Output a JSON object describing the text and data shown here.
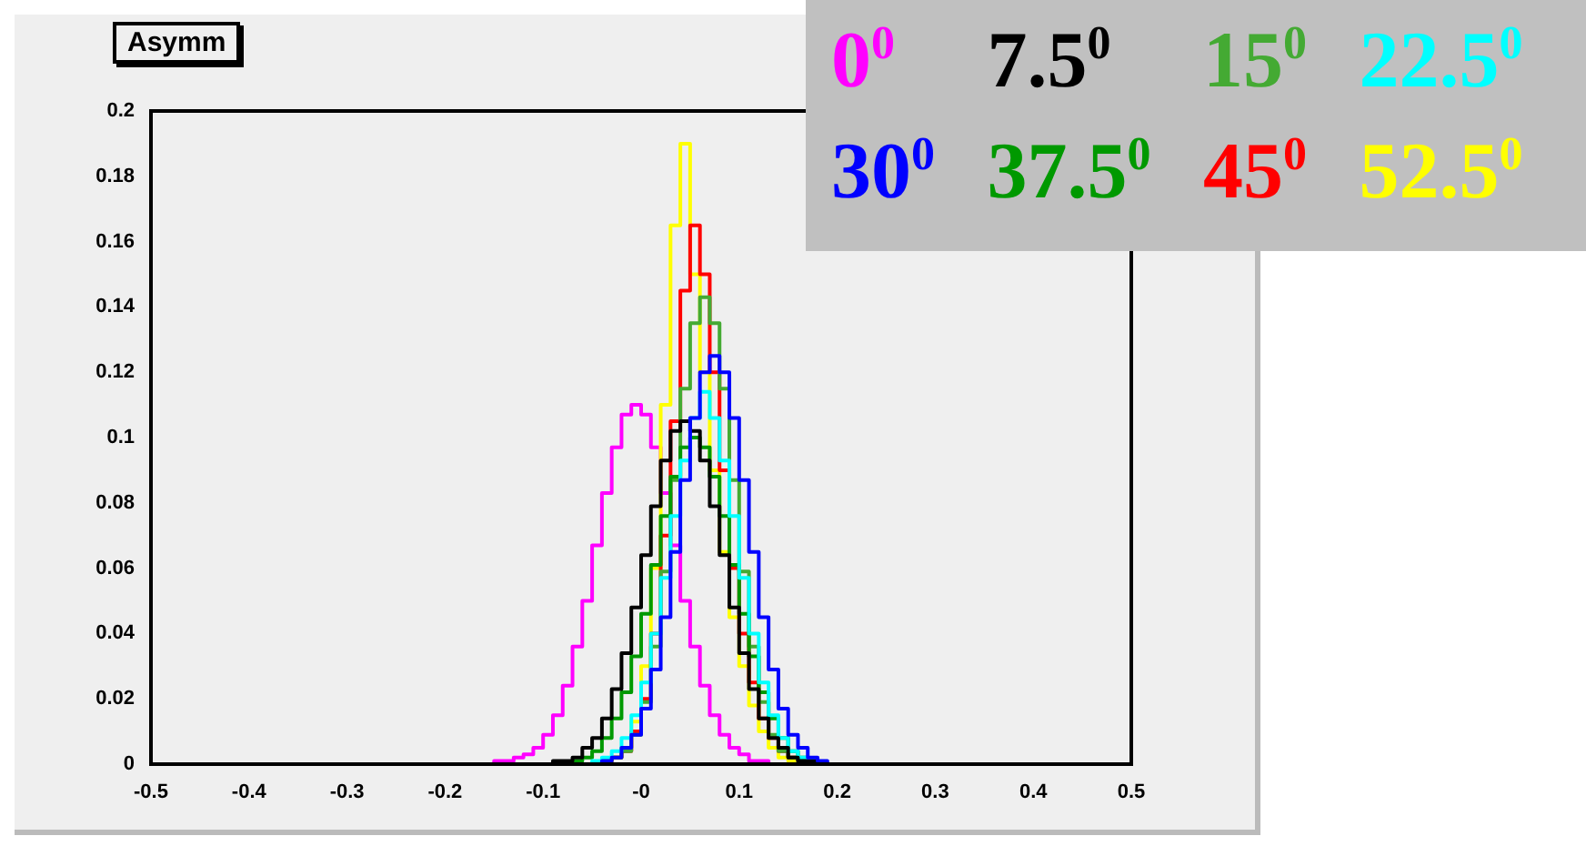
{
  "chart_data": {
    "type": "histogram",
    "title": "Asymm",
    "legend": "top right",
    "xlim": [
      -0.5,
      0.5
    ],
    "ylim": [
      0,
      0.2
    ],
    "xticks": [
      -0.5,
      -0.4,
      -0.3,
      -0.2,
      -0.1,
      {
        "value": 0,
        "label": "-0"
      },
      0.1,
      0.2,
      0.3,
      0.4,
      0.5
    ],
    "yticks": [
      0,
      0.02,
      0.04,
      0.06,
      0.08,
      0.1,
      0.12,
      0.14,
      0.16,
      0.18,
      0.2
    ],
    "bins": [
      -0.5,
      -0.16,
      -0.15,
      -0.14,
      -0.13,
      -0.12,
      -0.11,
      -0.1,
      -0.09,
      -0.08,
      -0.07,
      -0.06,
      -0.05,
      -0.04,
      -0.03,
      -0.02,
      -0.01,
      0,
      0.01,
      0.02,
      0.03,
      0.04,
      0.05,
      0.06,
      0.07,
      0.08,
      0.09,
      0.1,
      0.11,
      0.12,
      0.13,
      0.14,
      0.15,
      0.16,
      0.17,
      0.18,
      0.19,
      0.2,
      0.21,
      0.22,
      0.23,
      0.24,
      0.25,
      0.26,
      0.5
    ],
    "series": [
      {
        "name": "0$^{0}$",
        "color": "#ff00ff",
        "values": [
          0,
          0,
          0.001,
          0.001,
          0.002,
          0.003,
          0.005,
          0.009,
          0.015,
          0.024,
          0.036,
          0.05,
          0.067,
          0.083,
          0.097,
          0.107,
          0.11,
          0.107,
          0.097,
          0.083,
          0.067,
          0.05,
          0.036,
          0.024,
          0.015,
          0.009,
          0.005,
          0.003,
          0.001,
          0.001,
          0,
          0,
          0,
          0,
          0,
          0,
          0,
          0,
          0,
          0,
          0,
          0,
          0,
          0
        ]
      },
      {
        "name": "7.5$^{0}$",
        "color": "#000000",
        "values": [
          0,
          0,
          0,
          0,
          0,
          0,
          0,
          0,
          0.001,
          0.001,
          0.002,
          0.005,
          0.008,
          0.014,
          0.023,
          0.034,
          0.048,
          0.064,
          0.079,
          0.093,
          0.102,
          0.105,
          0.102,
          0.093,
          0.079,
          0.064,
          0.048,
          0.034,
          0.023,
          0.014,
          0.008,
          0.005,
          0.002,
          0.001,
          0.001,
          0,
          0,
          0,
          0,
          0,
          0,
          0,
          0,
          0
        ]
      },
      {
        "name": "15$^{0}$",
        "color": "#44aa33",
        "values": [
          0,
          0,
          0,
          0,
          0,
          0,
          0,
          0,
          0,
          0,
          0,
          0,
          0,
          0.001,
          0.002,
          0.004,
          0.009,
          0.019,
          0.036,
          0.059,
          0.087,
          0.115,
          0.135,
          0.143,
          0.135,
          0.115,
          0.087,
          0.059,
          0.036,
          0.019,
          0.009,
          0.004,
          0.002,
          0.001,
          0,
          0,
          0,
          0,
          0,
          0,
          0,
          0,
          0,
          0
        ]
      },
      {
        "name": "22.5$^{0}$",
        "color": "#00ffff",
        "values": [
          0,
          0,
          0,
          0,
          0,
          0,
          0,
          0,
          0,
          0,
          0,
          0,
          0.001,
          0.002,
          0.004,
          0.008,
          0.015,
          0.025,
          0.04,
          0.057,
          0.076,
          0.093,
          0.106,
          0.114,
          0.106,
          0.093,
          0.076,
          0.057,
          0.04,
          0.025,
          0.015,
          0.008,
          0.004,
          0.002,
          0.001,
          0,
          0,
          0,
          0,
          0,
          0,
          0,
          0,
          0
        ]
      },
      {
        "name": "30$^{0}$",
        "color": "#0000ff",
        "values": [
          0,
          0,
          0,
          0,
          0,
          0,
          0,
          0,
          0,
          0,
          0,
          0,
          0,
          0.001,
          0.002,
          0.005,
          0.009,
          0.017,
          0.029,
          0.045,
          0.065,
          0.087,
          0.106,
          0.12,
          0.125,
          0.12,
          0.106,
          0.087,
          0.065,
          0.045,
          0.029,
          0.017,
          0.009,
          0.005,
          0.002,
          0.001,
          0,
          0,
          0,
          0,
          0,
          0,
          0,
          0
        ]
      },
      {
        "name": "37.5$^{0}$",
        "color": "#009900",
        "values": [
          0,
          0,
          0,
          0,
          0,
          0,
          0,
          0,
          0,
          0,
          0.001,
          0.002,
          0.004,
          0.008,
          0.014,
          0.022,
          0.033,
          0.046,
          0.061,
          0.076,
          0.088,
          0.097,
          0.1,
          0.097,
          0.088,
          0.076,
          0.061,
          0.046,
          0.033,
          0.022,
          0.014,
          0.008,
          0.004,
          0.002,
          0.001,
          0,
          0,
          0,
          0,
          0,
          0,
          0,
          0,
          0
        ]
      },
      {
        "name": "45$^{0}$",
        "color": "#ff0000",
        "values": [
          0,
          0,
          0,
          0,
          0,
          0,
          0,
          0,
          0,
          0,
          0,
          0,
          0,
          0.001,
          0.002,
          0.004,
          0.01,
          0.02,
          0.04,
          0.07,
          0.105,
          0.145,
          0.165,
          0.15,
          0.12,
          0.09,
          0.06,
          0.04,
          0.025,
          0.014,
          0.008,
          0.004,
          0.002,
          0.001,
          0,
          0,
          0,
          0,
          0,
          0,
          0,
          0,
          0,
          0
        ]
      },
      {
        "name": "52.5$^{0}$",
        "color": "#ffff00",
        "values": [
          0,
          0,
          0,
          0,
          0,
          0,
          0,
          0,
          0,
          0,
          0,
          0,
          0,
          0.001,
          0.002,
          0.005,
          0.013,
          0.03,
          0.06,
          0.11,
          0.165,
          0.19,
          0.15,
          0.12,
          0.09,
          0.065,
          0.045,
          0.03,
          0.018,
          0.01,
          0.005,
          0.002,
          0.001,
          0,
          0,
          0,
          0,
          0,
          0,
          0,
          0,
          0,
          0,
          0
        ]
      }
    ]
  }
}
